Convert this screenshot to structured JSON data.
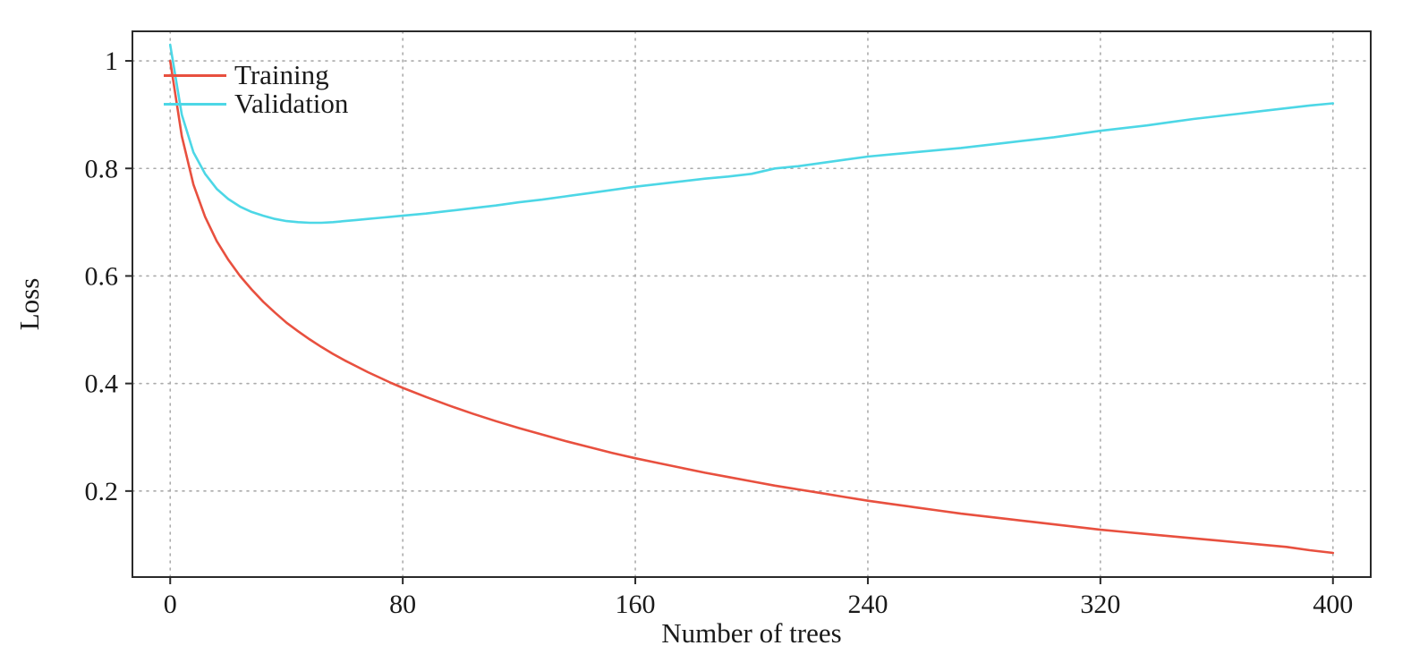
{
  "chart_data": {
    "type": "line",
    "title": "",
    "xlabel": "Number of trees",
    "ylabel": "Loss",
    "xlim": [
      -13,
      413
    ],
    "ylim": [
      0.04,
      1.055
    ],
    "xticks": [
      0,
      80,
      160,
      240,
      320,
      400
    ],
    "xtick_labels": [
      "0",
      "80",
      "160",
      "240",
      "320",
      "400"
    ],
    "yticks": [
      0.2,
      0.4,
      0.6,
      0.8,
      1
    ],
    "ytick_labels": [
      "0.2",
      "0.4",
      "0.6",
      "0.8",
      "1"
    ],
    "grid": true,
    "grid_style": "dotted",
    "legend_position": "top-left",
    "colors": {
      "axis": "#2a2a2a",
      "gridline": "#ababab",
      "tick_text": "#1a1a1a",
      "background": "#ffffff"
    },
    "x": [
      0,
      4,
      8,
      12,
      16,
      20,
      24,
      28,
      32,
      36,
      40,
      44,
      48,
      52,
      56,
      60,
      64,
      68,
      72,
      76,
      80,
      88,
      96,
      104,
      112,
      120,
      128,
      136,
      144,
      152,
      160,
      168,
      176,
      184,
      192,
      200,
      208,
      216,
      224,
      232,
      240,
      248,
      256,
      264,
      272,
      280,
      288,
      296,
      304,
      312,
      320,
      328,
      336,
      344,
      352,
      360,
      368,
      376,
      384,
      392,
      400
    ],
    "series": [
      {
        "name": "Training",
        "color": "#e8503f",
        "values": [
          1.0,
          0.86,
          0.77,
          0.71,
          0.665,
          0.63,
          0.6,
          0.575,
          0.552,
          0.532,
          0.513,
          0.497,
          0.482,
          0.468,
          0.455,
          0.443,
          0.432,
          0.421,
          0.411,
          0.401,
          0.392,
          0.375,
          0.359,
          0.344,
          0.33,
          0.317,
          0.305,
          0.293,
          0.282,
          0.271,
          0.261,
          0.252,
          0.243,
          0.234,
          0.226,
          0.218,
          0.21,
          0.203,
          0.196,
          0.189,
          0.182,
          0.176,
          0.17,
          0.164,
          0.158,
          0.153,
          0.148,
          0.143,
          0.138,
          0.133,
          0.128,
          0.124,
          0.12,
          0.116,
          0.112,
          0.108,
          0.104,
          0.1,
          0.096,
          0.09,
          0.085
        ]
      },
      {
        "name": "Validation",
        "color": "#4dd7e6",
        "values": [
          1.03,
          0.9,
          0.83,
          0.79,
          0.762,
          0.743,
          0.729,
          0.719,
          0.712,
          0.706,
          0.702,
          0.7,
          0.699,
          0.699,
          0.7,
          0.702,
          0.704,
          0.706,
          0.708,
          0.71,
          0.712,
          0.716,
          0.721,
          0.726,
          0.731,
          0.737,
          0.742,
          0.748,
          0.754,
          0.76,
          0.766,
          0.771,
          0.776,
          0.781,
          0.785,
          0.79,
          0.8,
          0.804,
          0.81,
          0.816,
          0.822,
          0.826,
          0.83,
          0.834,
          0.838,
          0.843,
          0.848,
          0.853,
          0.858,
          0.864,
          0.87,
          0.875,
          0.88,
          0.886,
          0.892,
          0.897,
          0.902,
          0.907,
          0.912,
          0.917,
          0.921
        ]
      }
    ]
  }
}
